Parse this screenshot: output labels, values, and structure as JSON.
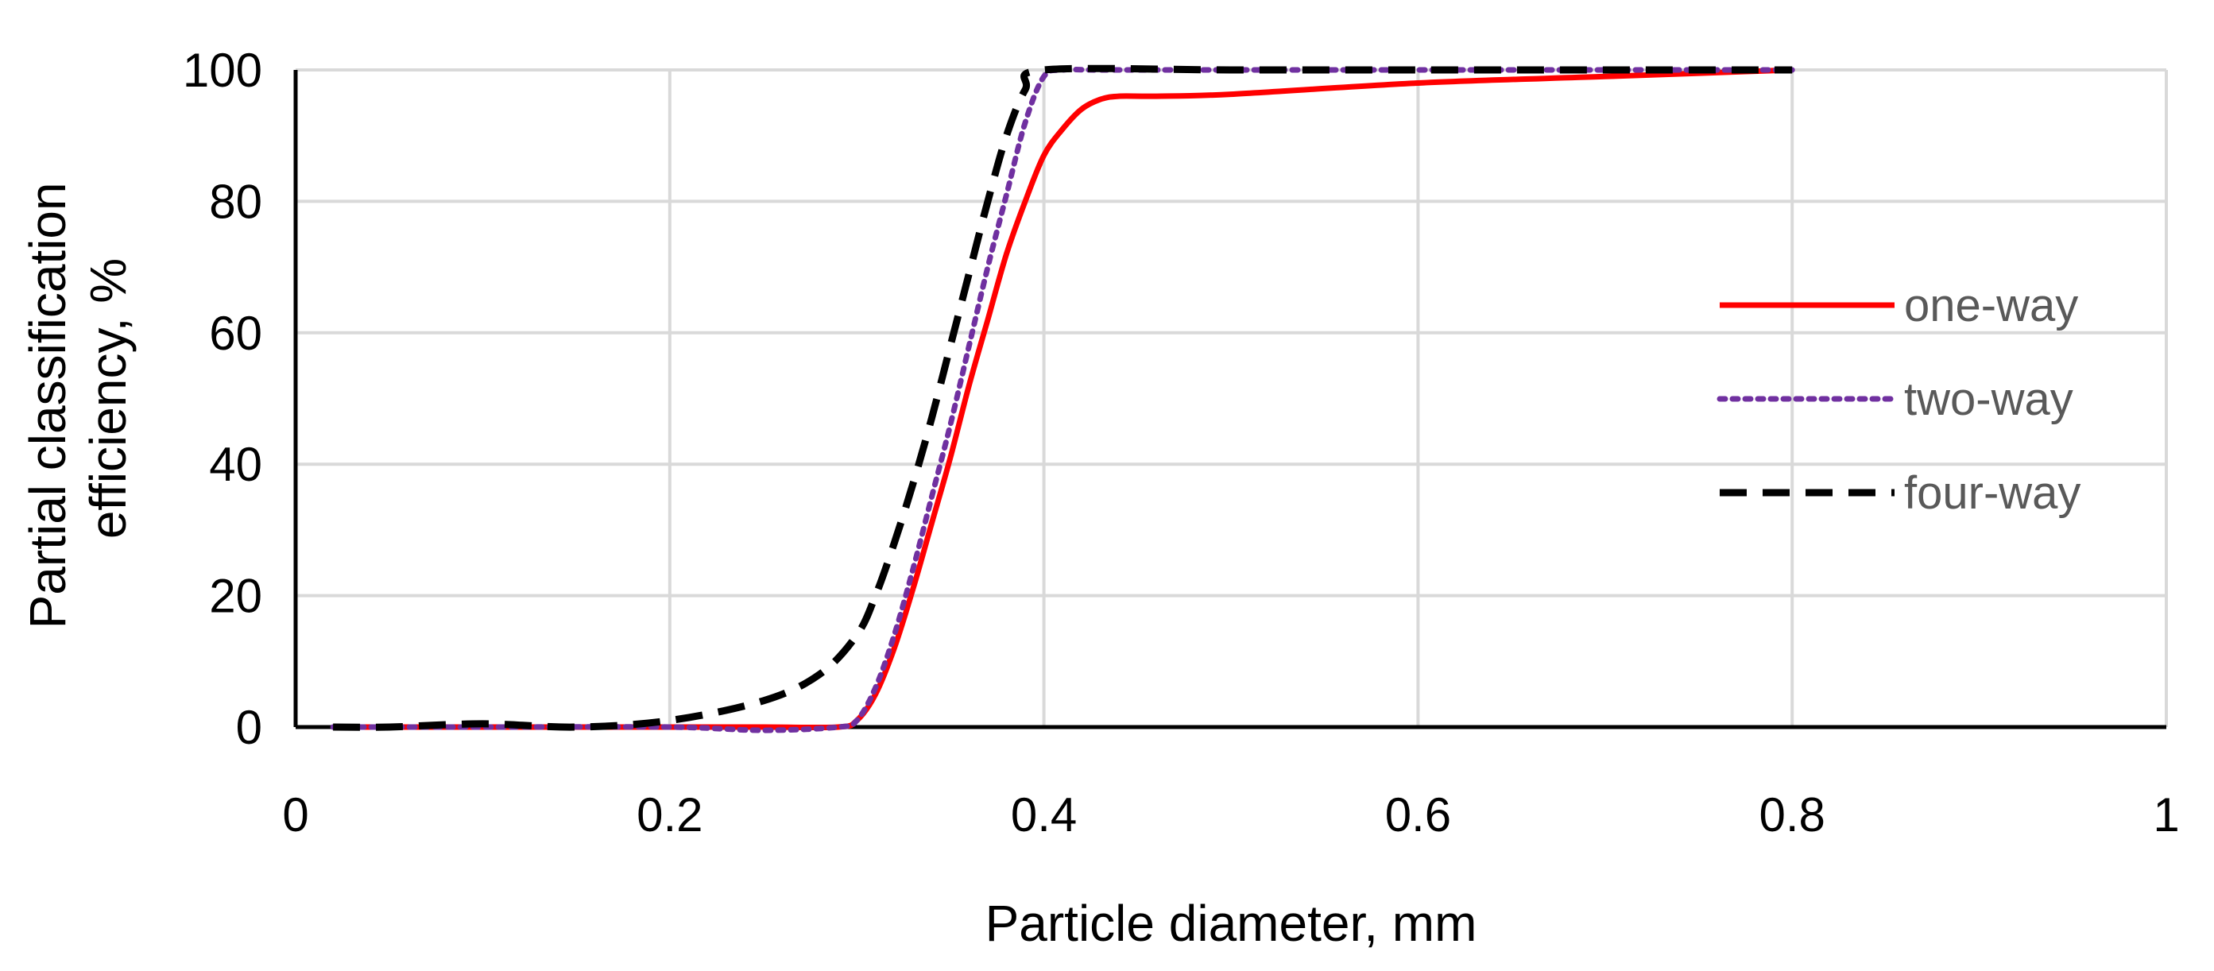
{
  "chart_data": {
    "type": "line",
    "title": "",
    "xlabel": "Particle diameter, mm",
    "ylabel": "Partial classification efficiency, %",
    "ylabel_lines": [
      "Partial classification",
      "efficiency, %"
    ],
    "xlim": [
      0,
      1
    ],
    "ylim": [
      0,
      100
    ],
    "xticks": [
      0,
      0.2,
      0.4,
      0.6,
      0.8,
      1
    ],
    "xtick_labels": [
      "0",
      "0.2",
      "0.4",
      "0.6",
      "0.8",
      "1"
    ],
    "yticks": [
      0,
      20,
      40,
      60,
      80,
      100
    ],
    "ytick_labels": [
      "0",
      "20",
      "40",
      "60",
      "80",
      "100"
    ],
    "grid": true,
    "legend_position": "right",
    "series": [
      {
        "name": "one-way",
        "color": "#ff0000",
        "style": "solid",
        "x": [
          0.02,
          0.1,
          0.2,
          0.25,
          0.29,
          0.3,
          0.31,
          0.32,
          0.33,
          0.34,
          0.35,
          0.36,
          0.37,
          0.38,
          0.39,
          0.4,
          0.41,
          0.42,
          0.43,
          0.44,
          0.46,
          0.5,
          0.6,
          0.7,
          0.8
        ],
        "y": [
          0,
          0,
          0,
          0,
          0,
          1,
          5,
          12,
          21,
          31,
          41,
          52,
          62,
          72,
          80,
          87,
          91,
          94,
          95.5,
          96,
          96,
          96.3,
          98,
          99,
          100
        ]
      },
      {
        "name": "two-way",
        "color": "#7030a0",
        "style": "dotted",
        "x": [
          0.02,
          0.1,
          0.2,
          0.25,
          0.29,
          0.3,
          0.31,
          0.32,
          0.33,
          0.34,
          0.35,
          0.36,
          0.37,
          0.38,
          0.39,
          0.4,
          0.41,
          0.43,
          0.5,
          0.6,
          0.7,
          0.8
        ],
        "y": [
          0,
          0,
          0,
          -0.5,
          0,
          1,
          6,
          14,
          24,
          35,
          46,
          58,
          70,
          81,
          92,
          99,
          100,
          100,
          100,
          100,
          100,
          100
        ]
      },
      {
        "name": "four-way",
        "color": "#000000",
        "style": "dashed",
        "x": [
          0.02,
          0.05,
          0.1,
          0.15,
          0.2,
          0.25,
          0.28,
          0.3,
          0.31,
          0.32,
          0.33,
          0.34,
          0.35,
          0.36,
          0.37,
          0.38,
          0.39,
          0.4,
          0.5,
          0.6,
          0.7,
          0.8
        ],
        "y": [
          0,
          0,
          0.5,
          0,
          1,
          4,
          8,
          14,
          20,
          28,
          37,
          47,
          58,
          69,
          80,
          90,
          97,
          100,
          100,
          100,
          100,
          100
        ]
      }
    ]
  }
}
